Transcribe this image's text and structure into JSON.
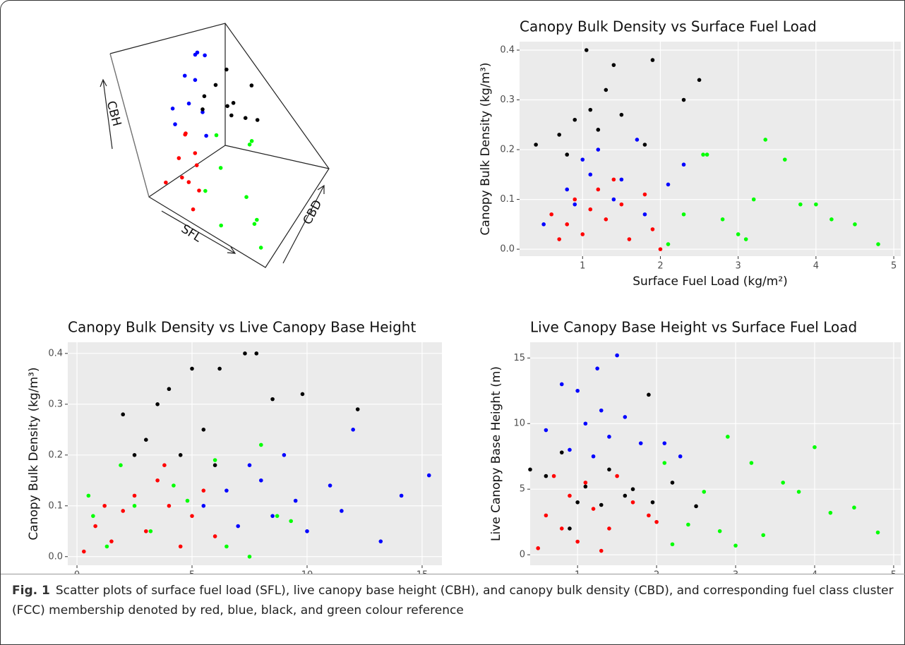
{
  "chart_data": [
    {
      "type": "scatter3d",
      "xlabel": "SFL",
      "ylabel": "CBH",
      "zlabel": "CBD",
      "xlim": [
        0,
        5
      ],
      "ylim": [
        0,
        15
      ],
      "zlim": [
        0,
        0.4
      ],
      "series": [
        {
          "color": "#ff0000",
          "x": [
            0.6,
            0.9,
            1.2,
            1.5,
            1.8,
            1.0,
            1.4,
            0.8,
            2.0,
            1.6
          ],
          "values": [
            2,
            4,
            3,
            5,
            1,
            6,
            2.5,
            5,
            3,
            4
          ],
          "z": [
            0.03,
            0.08,
            0.05,
            0.1,
            0.02,
            0.12,
            0.06,
            0.14,
            0.04,
            0.09
          ]
        },
        {
          "color": "#0000ff",
          "x": [
            0.7,
            1.0,
            1.3,
            1.6,
            0.9,
            1.2,
            1.8,
            1.5,
            1.1,
            2.1
          ],
          "values": [
            9,
            12,
            10,
            14,
            8,
            11,
            9.5,
            15,
            13,
            8
          ],
          "z": [
            0.1,
            0.15,
            0.12,
            0.2,
            0.08,
            0.18,
            0.13,
            0.16,
            0.22,
            0.1
          ]
        },
        {
          "color": "#000000",
          "x": [
            0.8,
            1.1,
            1.4,
            1.7,
            1.9,
            1.2,
            1.5,
            2.3,
            1.0,
            2.5
          ],
          "values": [
            5,
            7,
            4,
            6,
            5.5,
            8,
            3.5,
            5,
            6.5,
            4
          ],
          "z": [
            0.25,
            0.3,
            0.35,
            0.28,
            0.4,
            0.22,
            0.32,
            0.3,
            0.38,
            0.34
          ]
        },
        {
          "color": "#00ff00",
          "x": [
            2.2,
            2.6,
            3.0,
            3.4,
            3.8,
            4.2,
            4.8,
            2.4,
            3.2,
            4.5
          ],
          "values": [
            3,
            5,
            1,
            7,
            4,
            2,
            1.5,
            8,
            6,
            3.5
          ],
          "z": [
            0.05,
            0.1,
            0.02,
            0.19,
            0.08,
            0.06,
            0.01,
            0.12,
            0.2,
            0.04
          ]
        }
      ]
    },
    {
      "type": "scatter",
      "title": "Canopy Bulk Density vs Surface Fuel Load",
      "xlabel": "Surface Fuel Load (kg/m²)",
      "ylabel": "Canopy Bulk Density (kg/m³)",
      "xlim": [
        0.19,
        5.09
      ],
      "ylim": [
        -0.014,
        0.417
      ],
      "xticks": [
        1,
        2,
        3,
        4,
        5
      ],
      "yticks": [
        {
          "value": 0,
          "label": "0.0"
        },
        0.1,
        0.2,
        0.3,
        0.4
      ],
      "grid": true,
      "series": [
        {
          "color": "#ff0000",
          "x": [
            0.7,
            0.8,
            0.9,
            1.0,
            1.1,
            1.2,
            1.3,
            1.5,
            1.6,
            1.8,
            1.9,
            2.0,
            0.6,
            1.4
          ],
          "values": [
            0.02,
            0.05,
            0.1,
            0.03,
            0.08,
            0.12,
            0.06,
            0.09,
            0.02,
            0.11,
            0.04,
            0.0,
            0.07,
            0.14
          ]
        },
        {
          "color": "#0000ff",
          "x": [
            0.5,
            0.8,
            1.0,
            1.1,
            1.2,
            1.4,
            1.5,
            1.7,
            1.8,
            2.1,
            2.3,
            0.9
          ],
          "values": [
            0.05,
            0.12,
            0.18,
            0.15,
            0.2,
            0.1,
            0.14,
            0.22,
            0.07,
            0.13,
            0.17,
            0.09
          ]
        },
        {
          "color": "#000000",
          "x": [
            0.4,
            0.7,
            0.9,
            1.05,
            1.1,
            1.3,
            1.4,
            1.5,
            1.8,
            1.9,
            2.3,
            2.5,
            0.8,
            1.2
          ],
          "values": [
            0.21,
            0.23,
            0.26,
            0.4,
            0.28,
            0.32,
            0.37,
            0.27,
            0.21,
            0.38,
            0.3,
            0.34,
            0.19,
            0.24
          ]
        },
        {
          "color": "#00ff00",
          "x": [
            2.1,
            2.3,
            2.6,
            2.8,
            3.0,
            3.2,
            3.35,
            3.6,
            3.8,
            4.0,
            4.2,
            4.5,
            4.8,
            2.55,
            3.1
          ],
          "values": [
            0.01,
            0.07,
            0.19,
            0.06,
            0.03,
            0.1,
            0.22,
            0.18,
            0.09,
            0.09,
            0.06,
            0.05,
            0.01,
            0.19,
            0.02
          ]
        }
      ]
    },
    {
      "type": "scatter",
      "title": "Canopy Bulk Density vs Live Canopy Base Height",
      "xlabel": "Live Canopy Base Height (m)",
      "ylabel": "Canopy Bulk Density (kg/m³)",
      "xlim": [
        -0.4,
        15.86
      ],
      "ylim": [
        -0.017,
        0.422
      ],
      "xticks": [
        0,
        5,
        10,
        15
      ],
      "yticks": [
        {
          "value": 0,
          "label": "0.0"
        },
        0.1,
        0.2,
        0.3,
        0.4
      ],
      "grid": true,
      "series": [
        {
          "color": "#ff0000",
          "x": [
            0.3,
            0.8,
            1.5,
            2.0,
            2.5,
            3.0,
            3.5,
            4.0,
            4.5,
            5.0,
            5.5,
            6.0,
            3.8,
            1.2
          ],
          "values": [
            0.01,
            0.06,
            0.03,
            0.09,
            0.12,
            0.05,
            0.15,
            0.1,
            0.02,
            0.08,
            0.13,
            0.04,
            0.18,
            0.1
          ]
        },
        {
          "color": "#0000ff",
          "x": [
            5.5,
            6.5,
            7.0,
            7.5,
            8.0,
            8.5,
            9.0,
            9.5,
            10.0,
            11.0,
            12.0,
            13.2,
            14.1,
            15.3,
            11.5
          ],
          "values": [
            0.1,
            0.13,
            0.06,
            0.18,
            0.15,
            0.08,
            0.2,
            0.11,
            0.05,
            0.14,
            0.25,
            0.03,
            0.12,
            0.16,
            0.09
          ]
        },
        {
          "color": "#000000",
          "x": [
            2.0,
            2.5,
            3.0,
            3.5,
            4.0,
            4.5,
            5.0,
            5.5,
            6.2,
            7.3,
            7.8,
            8.5,
            9.8,
            12.2,
            6.0
          ],
          "values": [
            0.28,
            0.2,
            0.23,
            0.3,
            0.33,
            0.2,
            0.37,
            0.25,
            0.37,
            0.4,
            0.4,
            0.31,
            0.32,
            0.29,
            0.18
          ]
        },
        {
          "color": "#00ff00",
          "x": [
            0.5,
            0.7,
            1.3,
            1.9,
            2.5,
            3.2,
            4.2,
            4.8,
            6.0,
            7.5,
            8.0,
            8.7,
            9.3,
            6.5
          ],
          "values": [
            0.12,
            0.08,
            0.02,
            0.18,
            0.1,
            0.05,
            0.14,
            0.11,
            0.19,
            0.0,
            0.22,
            0.08,
            0.07,
            0.02
          ]
        }
      ]
    },
    {
      "type": "scatter",
      "title": "Live Canopy Base Height vs Surface Fuel Load",
      "xlabel": "Surface Fuel Load (kg/m²)",
      "ylabel": "Live Canopy Base Height (m)",
      "xlim": [
        0.4,
        5.09
      ],
      "ylim": [
        -0.8,
        16.2
      ],
      "xticks": [
        1,
        2,
        3,
        4,
        5
      ],
      "yticks": [
        0,
        5,
        10,
        15
      ],
      "grid": true,
      "series": [
        {
          "color": "#ff0000",
          "x": [
            0.5,
            0.6,
            0.7,
            0.8,
            0.9,
            1.0,
            1.1,
            1.2,
            1.4,
            1.5,
            1.7,
            1.9,
            2.0,
            1.3
          ],
          "values": [
            0.5,
            3,
            6,
            2,
            4.5,
            1,
            5.5,
            3.5,
            2,
            6,
            4,
            3,
            2.5,
            0.3
          ]
        },
        {
          "color": "#0000ff",
          "x": [
            0.6,
            0.8,
            0.9,
            1.0,
            1.1,
            1.2,
            1.3,
            1.4,
            1.5,
            1.6,
            1.8,
            2.1,
            2.3,
            1.25
          ],
          "values": [
            9.5,
            13,
            8,
            12.5,
            10,
            7.5,
            11,
            9,
            15.2,
            10.5,
            8.5,
            8.5,
            7.5,
            14.2
          ]
        },
        {
          "color": "#000000",
          "x": [
            0.4,
            0.6,
            0.8,
            1.0,
            1.1,
            1.3,
            1.4,
            1.6,
            1.7,
            1.9,
            2.2,
            2.5,
            0.9,
            1.95
          ],
          "values": [
            6.5,
            6,
            7.8,
            4,
            5.2,
            3.8,
            6.5,
            4.5,
            5,
            12.2,
            5.5,
            3.7,
            2,
            4
          ]
        },
        {
          "color": "#00ff00",
          "x": [
            2.1,
            2.2,
            2.4,
            2.6,
            2.8,
            3.0,
            3.2,
            3.35,
            3.6,
            3.8,
            4.0,
            4.2,
            4.5,
            4.8,
            2.9
          ],
          "values": [
            7,
            0.8,
            2.3,
            4.8,
            1.8,
            0.7,
            7,
            1.5,
            5.5,
            4.8,
            8.2,
            3.2,
            3.6,
            1.7,
            9
          ]
        }
      ]
    }
  ],
  "caption": {
    "label": "Fig. 1",
    "text": "Scatter plots of surface fuel load (SFL), live canopy base height (CBH), and canopy bulk density (CBD), and corresponding fuel class cluster (FCC) membership denoted by red, blue, black, and green colour reference"
  }
}
